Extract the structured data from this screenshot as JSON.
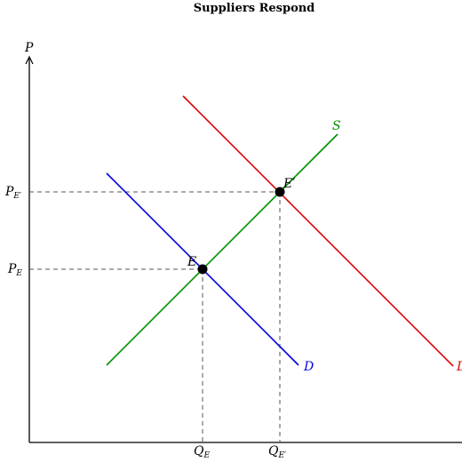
{
  "title": "Suppliers Respond",
  "axes": {
    "y_label": "P"
  },
  "curves": {
    "supply": {
      "label": "S",
      "color": "#009000"
    },
    "demand": {
      "label": "D",
      "color": "#0000dd"
    },
    "demand_shifted": {
      "label": "D",
      "color": "#dd0000"
    }
  },
  "points": {
    "E": {
      "label": "E",
      "color": "#000000"
    },
    "E_prime": {
      "label": "E′",
      "color": "#000000"
    }
  },
  "price_labels": {
    "pe_main": "P",
    "pe_sub": "E",
    "pe2_main": "P",
    "pe2_sub": "E′"
  },
  "quantity_labels": {
    "qe_main": "Q",
    "qe_sub": "E",
    "qe2_main": "Q",
    "qe2_sub": "E′"
  },
  "colors": {
    "axis": "#000000",
    "guide": "#555555"
  }
}
